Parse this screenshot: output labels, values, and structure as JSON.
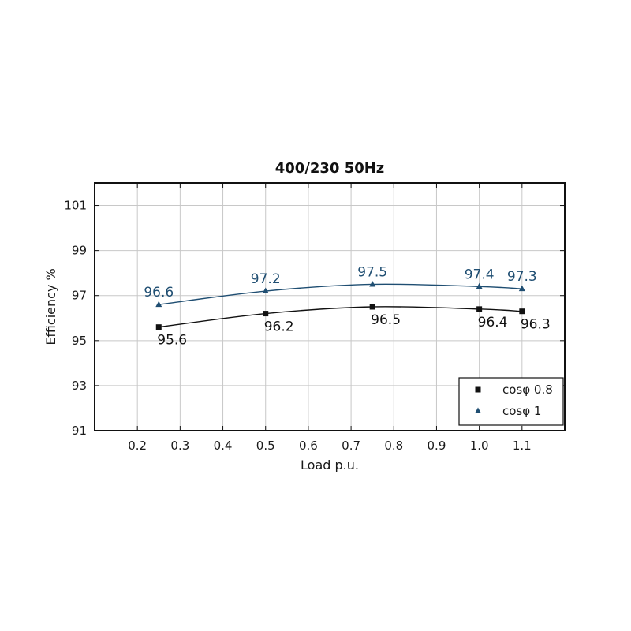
{
  "chart_data": {
    "type": "line",
    "title": "400/230 50Hz",
    "xlabel": "Load p.u.",
    "ylabel": "Efficiency %",
    "xlim": [
      0.1,
      1.2
    ],
    "ylim": [
      91,
      102
    ],
    "xticks": [
      0.2,
      0.3,
      0.4,
      0.5,
      0.6,
      0.7,
      0.8,
      0.9,
      1.0,
      1.1
    ],
    "xtick_labels": [
      "0.2",
      "0.3",
      "0.4",
      "0.5",
      "0.6",
      "0.7",
      "0.8",
      "0.9",
      "1.0",
      "1.1"
    ],
    "yticks": [
      91,
      93,
      95,
      97,
      99,
      101
    ],
    "ytick_labels": [
      "91",
      "93",
      "95",
      "97",
      "99",
      "101"
    ],
    "grid": true,
    "legend_position": "bottom-right",
    "series": [
      {
        "name": "cosφ 0.8",
        "marker": "square",
        "color": "#111111",
        "x": [
          0.25,
          0.5,
          0.75,
          1.0,
          1.1
        ],
        "y": [
          95.6,
          96.2,
          96.5,
          96.4,
          96.3
        ],
        "labels": [
          "95.6",
          "96.2",
          "96.5",
          "96.4",
          "96.3"
        ]
      },
      {
        "name": "cosφ 1",
        "marker": "triangle",
        "color": "#1f4e72",
        "x": [
          0.25,
          0.5,
          0.75,
          1.0,
          1.1
        ],
        "y": [
          96.6,
          97.2,
          97.5,
          97.4,
          97.3
        ],
        "labels": [
          "96.6",
          "97.2",
          "97.5",
          "97.4",
          "97.3"
        ]
      }
    ]
  }
}
